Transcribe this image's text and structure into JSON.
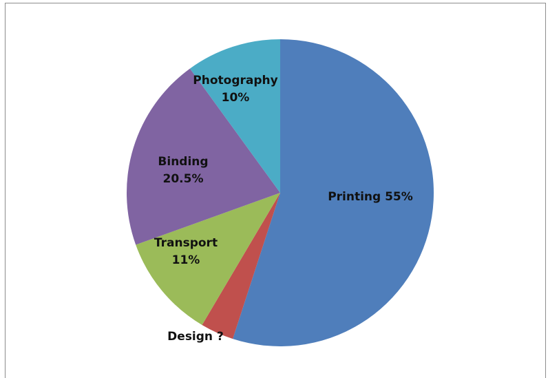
{
  "chart_data": {
    "type": "pie",
    "slices": [
      {
        "label_lines": [
          "Printing 55%"
        ],
        "value": 55,
        "color": "#4F7EBB"
      },
      {
        "label_lines": [
          "Design ?"
        ],
        "value": 3.5,
        "color": "#C0504D"
      },
      {
        "label_lines": [
          "Transport",
          "11%"
        ],
        "value": 11,
        "color": "#9BBB59"
      },
      {
        "label_lines": [
          "Binding",
          "20.5%"
        ],
        "value": 20.5,
        "color": "#8064A2"
      },
      {
        "label_lines": [
          "Photography",
          "10%"
        ],
        "value": 10,
        "color": "#4BACC6"
      }
    ],
    "start_angle": "12 o'clock",
    "direction": "clockwise",
    "legend": "none"
  }
}
